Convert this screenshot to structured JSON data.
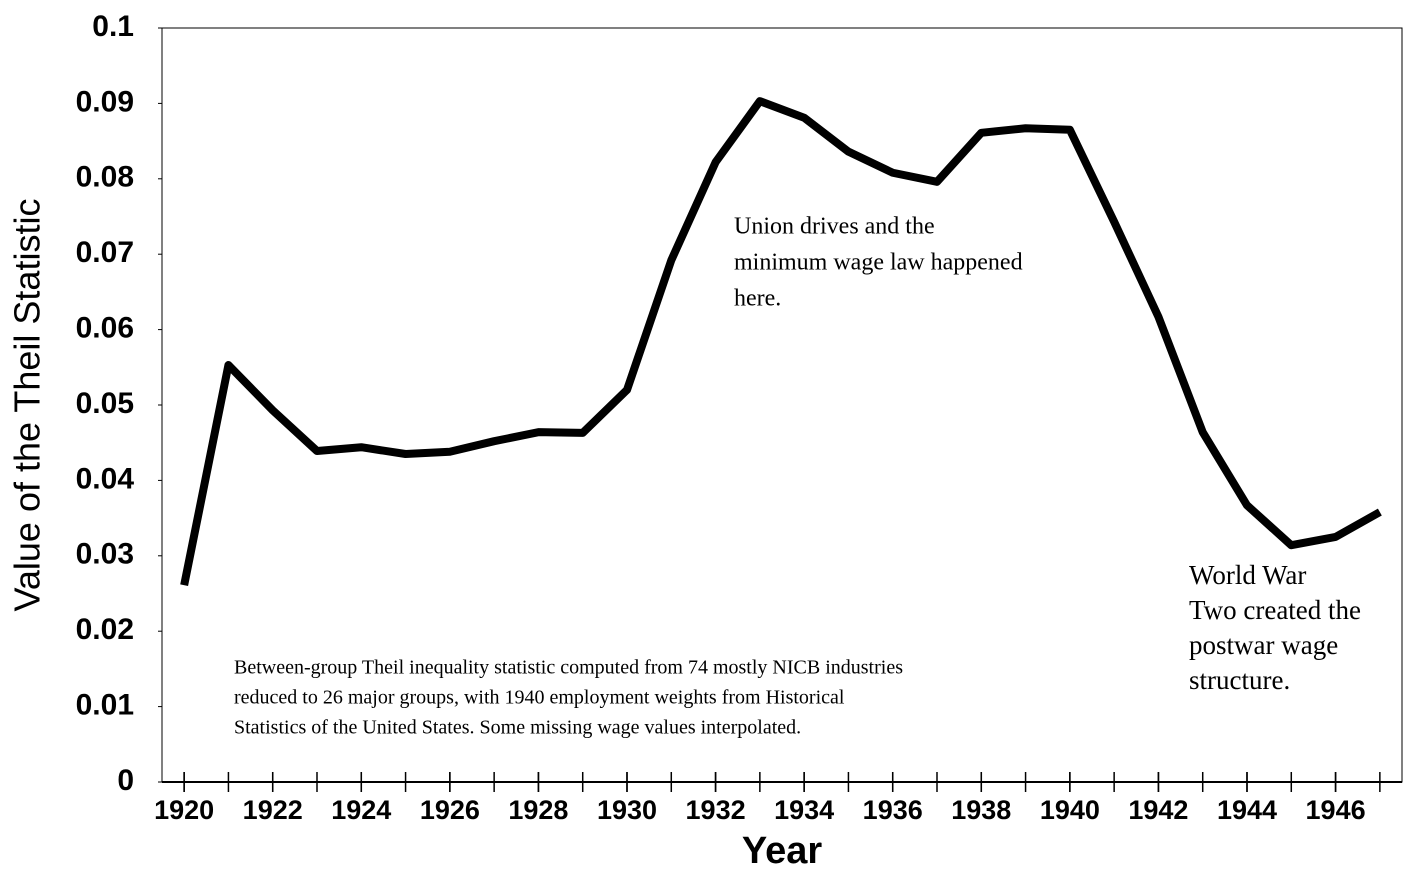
{
  "chart_data": {
    "type": "line",
    "x_label": "Year",
    "y_label": "Value of the Theil Statistic",
    "x": [
      1920,
      1921,
      1922,
      1923,
      1924,
      1925,
      1926,
      1927,
      1928,
      1929,
      1930,
      1931,
      1932,
      1933,
      1934,
      1935,
      1936,
      1937,
      1938,
      1939,
      1940,
      1941,
      1942,
      1943,
      1944,
      1945,
      1946,
      1947
    ],
    "series": [
      {
        "color": "#000000",
        "values": [
          0.0261,
          0.0553,
          0.0493,
          0.0439,
          0.0444,
          0.0435,
          0.0438,
          0.0452,
          0.0464,
          0.0463,
          0.052,
          0.0692,
          0.0822,
          0.0903,
          0.0881,
          0.0836,
          0.0808,
          0.0796,
          0.0861,
          0.0867,
          0.0865,
          0.0743,
          0.0617,
          0.0464,
          0.0367,
          0.0314,
          0.0325,
          0.0358
        ]
      }
    ],
    "xlim": [
      1919.5,
      1947.5
    ],
    "xticks": [
      1920,
      1922,
      1924,
      1926,
      1928,
      1930,
      1932,
      1934,
      1936,
      1938,
      1940,
      1942,
      1944,
      1946
    ],
    "ylim": [
      0,
      0.1
    ],
    "yticks": [
      0,
      0.01,
      0.02,
      0.03,
      0.04,
      0.05,
      0.06,
      0.07,
      0.08,
      0.09,
      0.1
    ],
    "annotations": [
      {
        "lines": [
          "Union drives and the",
          "minimum wage law happened",
          "here."
        ]
      },
      {
        "lines": [
          "World War",
          "Two created the",
          "postwar wage",
          "structure."
        ]
      },
      {
        "lines": [
          "Between-group Theil inequality statistic computed from 74 mostly NICB industries",
          "reduced to 26 major groups, with 1940 employment weights from Historical",
          "Statistics of the United States.  Some missing wage values interpolated."
        ]
      }
    ]
  }
}
